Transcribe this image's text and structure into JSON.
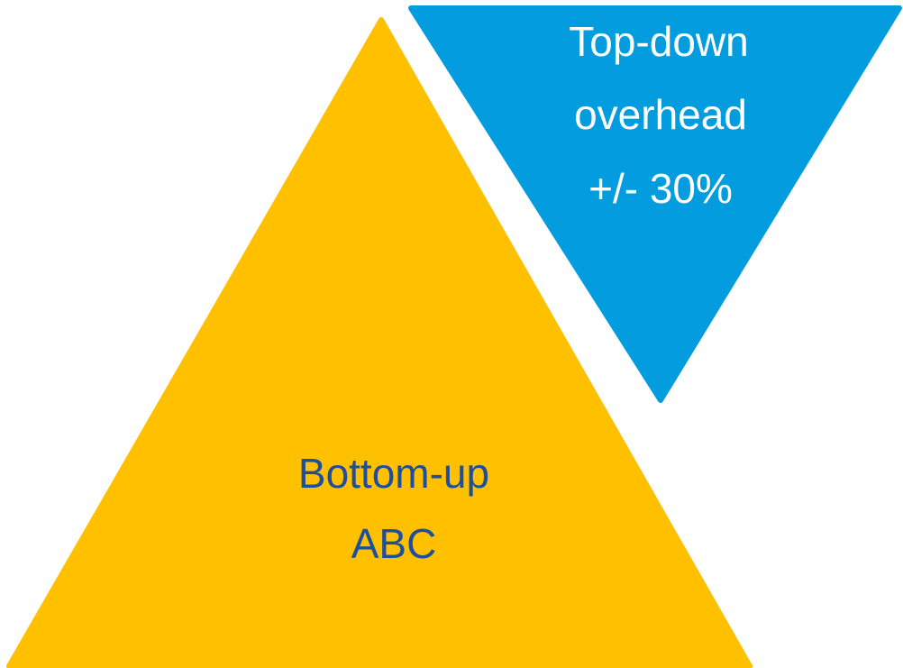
{
  "diagram": {
    "top_down": {
      "lines": [
        "Top-down",
        "overhead",
        "+/- 30%"
      ],
      "fill_color": "#039DDF",
      "text_color": "#FFFFFF"
    },
    "bottom_up": {
      "lines": [
        "Bottom-up",
        "ABC"
      ],
      "fill_color": "#FFC000",
      "text_color": "#1F4E9C"
    }
  }
}
